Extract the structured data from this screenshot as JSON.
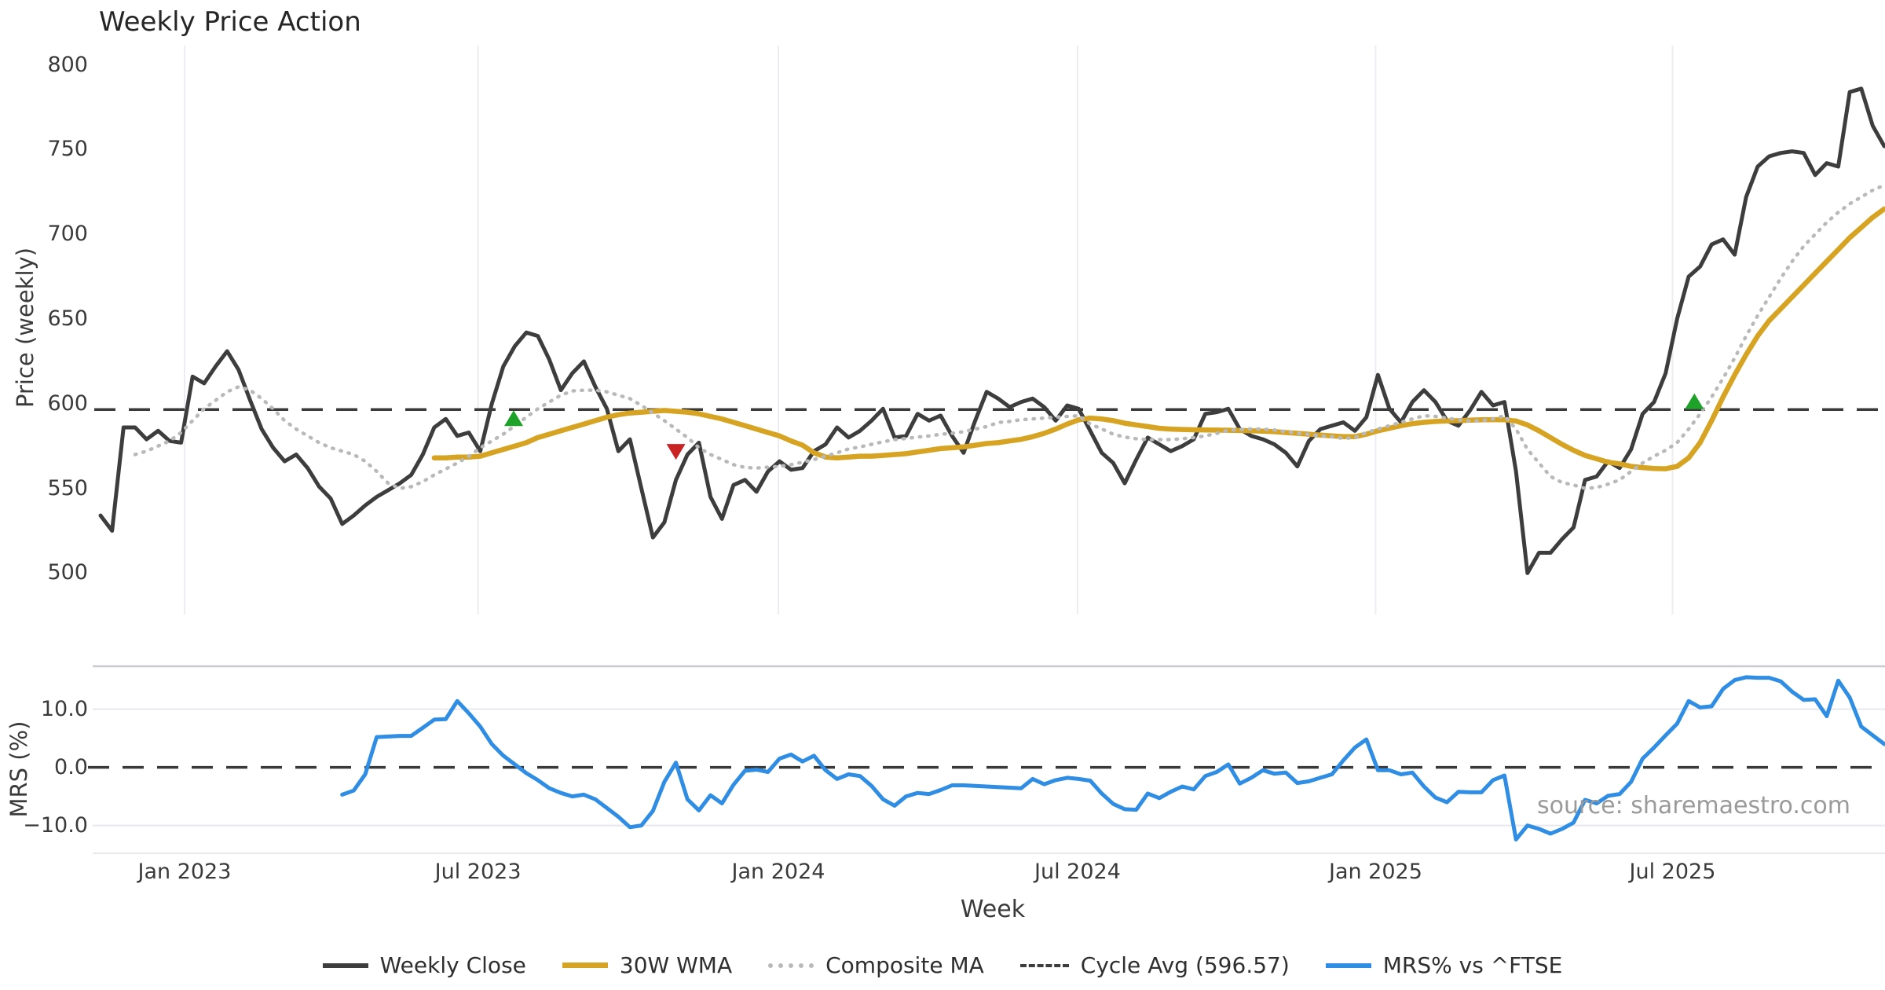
{
  "header": {
    "title": "Weekly Price Action"
  },
  "price_panel": {
    "ylabel": "Price (weekly)"
  },
  "mrs_panel": {
    "ylabel": "MRS (%)"
  },
  "x_axis": {
    "label": "Week"
  },
  "footer": {
    "source": "source: sharemaestro.com"
  },
  "colors": {
    "close": "#3d3d3d",
    "wma": "#d7a322",
    "composite": "#b9b9b9",
    "cycle_avg": "#3a3a3a",
    "mrs": "#2f8de4",
    "buy_marker": "#1fa22a",
    "sell_marker": "#c92323",
    "grid": "#ededf1",
    "mrs_grid": "#e8e8ee",
    "spine": "#c9c9cf",
    "source_text": "#9a9a9a"
  },
  "chart_data": {
    "type": "line",
    "title": "Weekly Price Action",
    "xlabel": "Week",
    "x_ticks": [
      {
        "week": 7.3,
        "label": "Jan 2023"
      },
      {
        "week": 32.8,
        "label": "Jul 2023"
      },
      {
        "week": 58.9,
        "label": "Jan 2024"
      },
      {
        "week": 84.9,
        "label": "Jul 2024"
      },
      {
        "week": 110.8,
        "label": "Jan 2025"
      },
      {
        "week": 136.6,
        "label": "Jul 2025"
      }
    ],
    "price_axis": {
      "label": "Price (weekly)",
      "tick_values": [
        800,
        750,
        700,
        650,
        600,
        550,
        500
      ],
      "ylim": [
        460,
        810
      ]
    },
    "mrs_axis": {
      "label": "MRS (%)",
      "tick_values": [
        10.0,
        0.0,
        -10.0
      ],
      "tick_labels": [
        "10.0",
        "0.0",
        "−10.0"
      ],
      "ylim": [
        -14.5,
        17.3
      ]
    },
    "reference_lines": [
      {
        "name": "Cycle Avg",
        "panel": "price",
        "value": 596.57,
        "style": "dashed",
        "color": "#3a3a3a"
      },
      {
        "name": "Zero line",
        "panel": "mrs",
        "value": 0.0,
        "style": "dashed",
        "color": "#3a3a3a"
      }
    ],
    "markers": [
      {
        "shape": "triangle-up",
        "color": "#1fa22a",
        "week": 35.9,
        "price": 591
      },
      {
        "shape": "triangle-down",
        "color": "#c92323",
        "week": 50.0,
        "price": 572
      },
      {
        "shape": "triangle-up",
        "color": "#1fa22a",
        "week": 138.5,
        "price": 601
      }
    ],
    "series": [
      {
        "name": "Weekly Close",
        "panel": "price",
        "color": "#3d3d3d",
        "width": 5,
        "dash": "solid",
        "start_week": 0,
        "values": [
          534,
          525,
          586,
          586,
          579,
          584,
          578,
          577,
          616,
          612,
          622,
          631,
          620,
          602,
          585,
          574,
          566,
          570,
          562,
          551,
          544,
          529,
          534,
          540,
          545,
          549,
          553,
          558,
          570,
          586,
          591,
          581,
          583,
          572,
          600,
          622,
          634,
          642,
          640,
          626,
          608,
          618,
          625,
          610,
          597,
          572,
          579,
          550,
          521,
          530,
          555,
          570,
          577,
          545,
          532,
          552,
          555,
          548,
          560,
          566,
          561,
          562,
          572,
          576,
          586,
          580,
          584,
          590,
          597,
          580,
          581,
          594,
          590,
          593,
          581,
          571,
          590,
          607,
          603,
          598,
          601,
          603,
          598,
          590,
          599,
          597,
          584,
          571,
          565,
          553,
          567,
          580,
          576,
          572,
          575,
          579,
          594,
          595,
          597,
          585,
          581,
          579,
          576,
          571,
          563,
          578,
          585,
          587,
          589,
          584,
          592,
          617,
          597,
          589,
          601,
          608,
          601,
          590,
          587,
          596,
          607,
          599,
          601,
          560,
          500,
          512,
          512,
          520,
          527,
          555,
          557,
          566,
          562,
          573,
          594,
          601,
          618,
          650,
          675,
          681,
          694,
          697,
          688,
          722,
          740,
          746,
          748,
          749,
          748,
          735,
          742,
          740,
          784,
          786,
          764,
          752
        ]
      },
      {
        "name": "30W WMA",
        "panel": "price",
        "color": "#d7a322",
        "width": 6.5,
        "dash": "solid",
        "start_week": 29,
        "values": [
          568,
          568,
          568.5,
          568.5,
          569,
          571,
          573,
          575,
          577,
          580,
          582,
          584,
          586,
          588,
          590,
          592,
          593.5,
          594.5,
          595,
          595.5,
          596,
          595.5,
          595,
          594,
          592.5,
          591,
          589,
          587,
          585,
          583,
          581,
          578,
          575.5,
          571,
          568.5,
          568,
          568.5,
          569,
          569,
          569.5,
          570,
          570.5,
          571.5,
          572.5,
          573.5,
          574,
          574.5,
          575.5,
          576.5,
          577,
          578,
          579,
          580.5,
          582.5,
          585,
          588,
          590.5,
          591.5,
          591,
          590,
          588.5,
          587.5,
          586.5,
          585.5,
          585,
          584.8,
          584.6,
          584.5,
          584.4,
          584.3,
          584.2,
          584,
          583.8,
          583.5,
          583,
          582.5,
          582,
          581.5,
          581,
          580.5,
          580.5,
          582,
          584,
          585.5,
          587,
          588.2,
          589,
          589.5,
          589.8,
          590,
          590.3,
          590.5,
          590.6,
          590.5,
          589.8,
          587.5,
          584,
          580,
          576,
          572.5,
          569.5,
          567.5,
          565.5,
          564.5,
          563,
          562.3,
          561.8,
          561.6,
          563,
          568,
          577,
          590,
          604,
          617,
          629,
          640,
          649,
          656,
          663,
          670,
          677,
          684,
          691,
          698,
          704,
          710,
          715
        ]
      },
      {
        "name": "Composite MA",
        "panel": "price",
        "color": "#b9b9b9",
        "width": 4.5,
        "dash": "dotted",
        "start_week": 3,
        "values": [
          570,
          572,
          575,
          578,
          583,
          590,
          597,
          602,
          607,
          610,
          608,
          603,
          597,
          590,
          585,
          581,
          577,
          574,
          572,
          570,
          566,
          560,
          553,
          550,
          551,
          554,
          558,
          561.5,
          565,
          569,
          574,
          578,
          582,
          587,
          592,
          597,
          601,
          605,
          607.5,
          608,
          608,
          607,
          605,
          603,
          599,
          594.5,
          590,
          585,
          580,
          574,
          570,
          567,
          564,
          562.4,
          562,
          562.5,
          563,
          564,
          565.5,
          567,
          569,
          571,
          573.3,
          574.5,
          576,
          577.5,
          578.8,
          579.5,
          580.3,
          581,
          581.9,
          582.5,
          583.5,
          585,
          586.5,
          588.9,
          589.5,
          590.6,
          591,
          591.5,
          592,
          592.5,
          592.9,
          588,
          585.1,
          582,
          580.3,
          579.3,
          578.8,
          578.8,
          578.8,
          579.3,
          580,
          581,
          582.5,
          584.3,
          584.8,
          585.1,
          585,
          584.4,
          583.5,
          582.5,
          581.9,
          581,
          580.5,
          579.5,
          580,
          583,
          585,
          587,
          589,
          591,
          592.9,
          592.5,
          591.5,
          590.5,
          589.8,
          590,
          591,
          592.9,
          585,
          573,
          565,
          557,
          553.5,
          552,
          550,
          550.5,
          552.5,
          555,
          560,
          565,
          569,
          572.5,
          577,
          585,
          594,
          604,
          615,
          627,
          640,
          652,
          663,
          674,
          684,
          693,
          700,
          707,
          713,
          718,
          722,
          726,
          729
        ]
      },
      {
        "name": "MRS% vs ^FTSE",
        "panel": "mrs",
        "color": "#2f8de4",
        "width": 5,
        "dash": "solid",
        "start_week": 21,
        "values": [
          -4.7,
          -4.0,
          -1.2,
          5.2,
          5.3,
          5.4,
          5.4,
          6.8,
          8.2,
          8.3,
          11.4,
          9.3,
          7.0,
          4.0,
          2.0,
          0.5,
          -1.0,
          -2.2,
          -3.6,
          -4.4,
          -5.0,
          -4.7,
          -5.5,
          -7.0,
          -8.5,
          -10.3,
          -10.0,
          -7.5,
          -2.5,
          0.8,
          -5.5,
          -7.4,
          -4.8,
          -6.2,
          -3.0,
          -0.6,
          -0.4,
          -0.8,
          1.5,
          2.2,
          1.0,
          2.0,
          -0.5,
          -2.0,
          -1.2,
          -1.5,
          -3.2,
          -5.5,
          -6.6,
          -5.0,
          -4.4,
          -4.6,
          -3.9,
          -3.1,
          -3.1,
          -3.2,
          -3.3,
          -3.4,
          -3.5,
          -3.6,
          -2.0,
          -2.9,
          -2.2,
          -1.8,
          -2.0,
          -2.3,
          -4.5,
          -6.3,
          -7.2,
          -7.3,
          -4.5,
          -5.3,
          -4.2,
          -3.3,
          -3.8,
          -1.5,
          -0.8,
          0.5,
          -2.8,
          -1.8,
          -0.5,
          -1.1,
          -0.9,
          -2.7,
          -2.4,
          -1.8,
          -1.2,
          1.2,
          3.4,
          4.8,
          -0.5,
          -0.5,
          -1.2,
          -0.9,
          -3.3,
          -5.2,
          -6.0,
          -4.2,
          -4.3,
          -4.3,
          -2.2,
          -1.4,
          -12.4,
          -10.0,
          -10.6,
          -11.4,
          -10.6,
          -9.5,
          -5.6,
          -6.2,
          -4.9,
          -4.6,
          -2.5,
          1.5,
          3.4,
          5.5,
          7.5,
          11.4,
          10.3,
          10.5,
          13.5,
          15.0,
          15.5,
          15.4,
          15.4,
          14.8,
          13.0,
          11.6,
          11.7,
          8.8,
          14.9,
          12.0,
          7.0,
          5.5,
          4.0
        ]
      }
    ],
    "legend": [
      {
        "label": "Weekly Close",
        "swatch": "solid-dark"
      },
      {
        "label": "30W WMA",
        "swatch": "solid-gold"
      },
      {
        "label": "Composite MA",
        "swatch": "dotted-gray"
      },
      {
        "label": "Cycle Avg (596.57)",
        "swatch": "dashed-dark"
      },
      {
        "label": "MRS% vs ^FTSE",
        "swatch": "solid-blue"
      }
    ]
  }
}
